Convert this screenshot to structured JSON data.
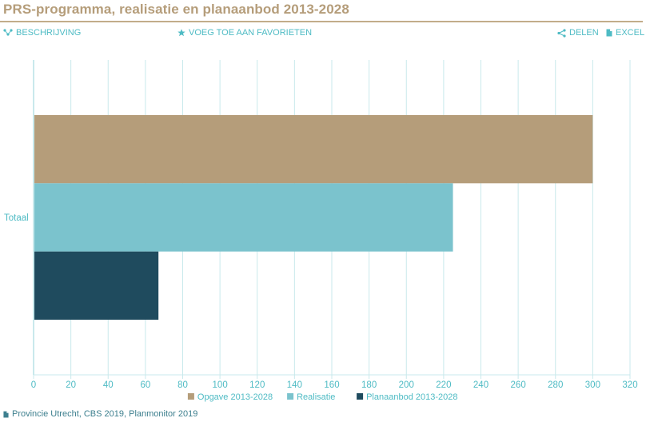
{
  "header": {
    "title": "PRS-programma, realisatie en planaanbod 2013-2028"
  },
  "toolbar": {
    "description_label": "BESCHRIJVING",
    "description_icon": "share-nodes-icon",
    "favorite_label": "VOEG TOE AAN FAVORIETEN",
    "favorite_icon": "star-icon",
    "share_label": "DELEN",
    "share_icon": "share-icon",
    "excel_label": "EXCEL",
    "excel_icon": "file-icon"
  },
  "footer": {
    "source": "Provincie Utrecht, CBS 2019, Planmonitor 2019",
    "source_icon": "file-icon"
  },
  "colors": {
    "accent": "#4ebbc4",
    "title": "#b59d7a",
    "grid": "#c9e9ec"
  },
  "chart_data": {
    "type": "bar",
    "orientation": "horizontal",
    "categories": [
      "Totaal"
    ],
    "series": [
      {
        "name": "Opgave 2013-2028",
        "values": [
          300
        ],
        "color": "#b59d7a"
      },
      {
        "name": "Realisatie",
        "values": [
          225
        ],
        "color": "#7bc3cd"
      },
      {
        "name": "Planaanbod 2013-2028",
        "values": [
          67
        ],
        "color": "#1f4b5e"
      }
    ],
    "xlim": [
      0,
      320
    ],
    "xticks": [
      0,
      20,
      40,
      60,
      80,
      100,
      120,
      140,
      160,
      180,
      200,
      220,
      240,
      260,
      280,
      300,
      320
    ],
    "grid": true,
    "legend": "bottom"
  }
}
